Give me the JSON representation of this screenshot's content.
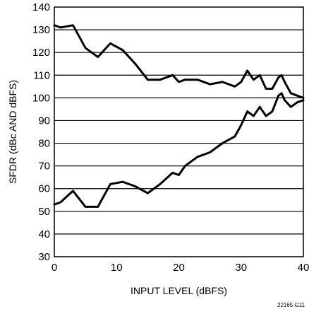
{
  "chart_data": {
    "type": "line",
    "title": "",
    "xlabel": "INPUT LEVEL (dBFS)",
    "ylabel": "SFDR (dBc AND dBFS)",
    "xlim": [
      0,
      40
    ],
    "ylim": [
      30,
      140
    ],
    "xticks": [
      0,
      10,
      20,
      30,
      40
    ],
    "yticks": [
      30,
      40,
      50,
      60,
      70,
      80,
      90,
      100,
      110,
      120,
      130,
      140
    ],
    "grid": "horizontal",
    "line_color": "#000000",
    "figure_code": "22165 G11",
    "series": [
      {
        "x": [
          0,
          1,
          3,
          5,
          7,
          9,
          11,
          13,
          15,
          17,
          19,
          20,
          21,
          23,
          25,
          27,
          29,
          30,
          31,
          32,
          33,
          34,
          35,
          36,
          36.5,
          37,
          38,
          39,
          40
        ],
        "y": [
          132,
          131,
          132,
          122,
          118,
          124,
          121,
          115,
          108,
          108,
          110,
          107,
          108,
          108,
          106,
          107,
          105,
          107,
          112,
          108,
          110,
          104,
          104,
          109,
          110,
          107,
          102,
          101,
          100
        ]
      },
      {
        "x": [
          0,
          1,
          3,
          5,
          7,
          9,
          11,
          13,
          15,
          17,
          19,
          20,
          21,
          23,
          25,
          27,
          29,
          30,
          31,
          32,
          33,
          34,
          35,
          36,
          36.5,
          37,
          38,
          39,
          40
        ],
        "y": [
          53,
          54,
          59,
          52,
          52,
          62,
          63,
          61,
          58,
          62,
          67,
          66,
          70,
          74,
          76,
          80,
          83,
          88,
          94,
          92,
          96,
          92,
          94,
          101,
          102,
          99,
          96,
          98,
          99
        ]
      }
    ]
  }
}
